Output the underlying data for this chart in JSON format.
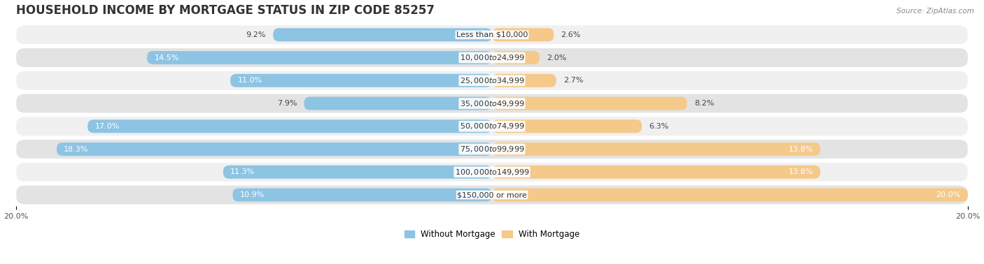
{
  "title": "HOUSEHOLD INCOME BY MORTGAGE STATUS IN ZIP CODE 85257",
  "source": "Source: ZipAtlas.com",
  "categories": [
    "Less than $10,000",
    "$10,000 to $24,999",
    "$25,000 to $34,999",
    "$35,000 to $49,999",
    "$50,000 to $74,999",
    "$75,000 to $99,999",
    "$100,000 to $149,999",
    "$150,000 or more"
  ],
  "without_mortgage": [
    9.2,
    14.5,
    11.0,
    7.9,
    17.0,
    18.3,
    11.3,
    10.9
  ],
  "with_mortgage": [
    2.6,
    2.0,
    2.7,
    8.2,
    6.3,
    13.8,
    13.8,
    20.0
  ],
  "color_left": "#8DC4E3",
  "color_right": "#F5C98A",
  "row_color_light": "#F0F0F0",
  "row_color_dark": "#E3E3E3",
  "xlim": 20.0,
  "legend_labels": [
    "Without Mortgage",
    "With Mortgage"
  ],
  "title_fontsize": 12,
  "label_fontsize": 8,
  "bar_value_fontsize": 8,
  "x_tick_fontsize": 8
}
